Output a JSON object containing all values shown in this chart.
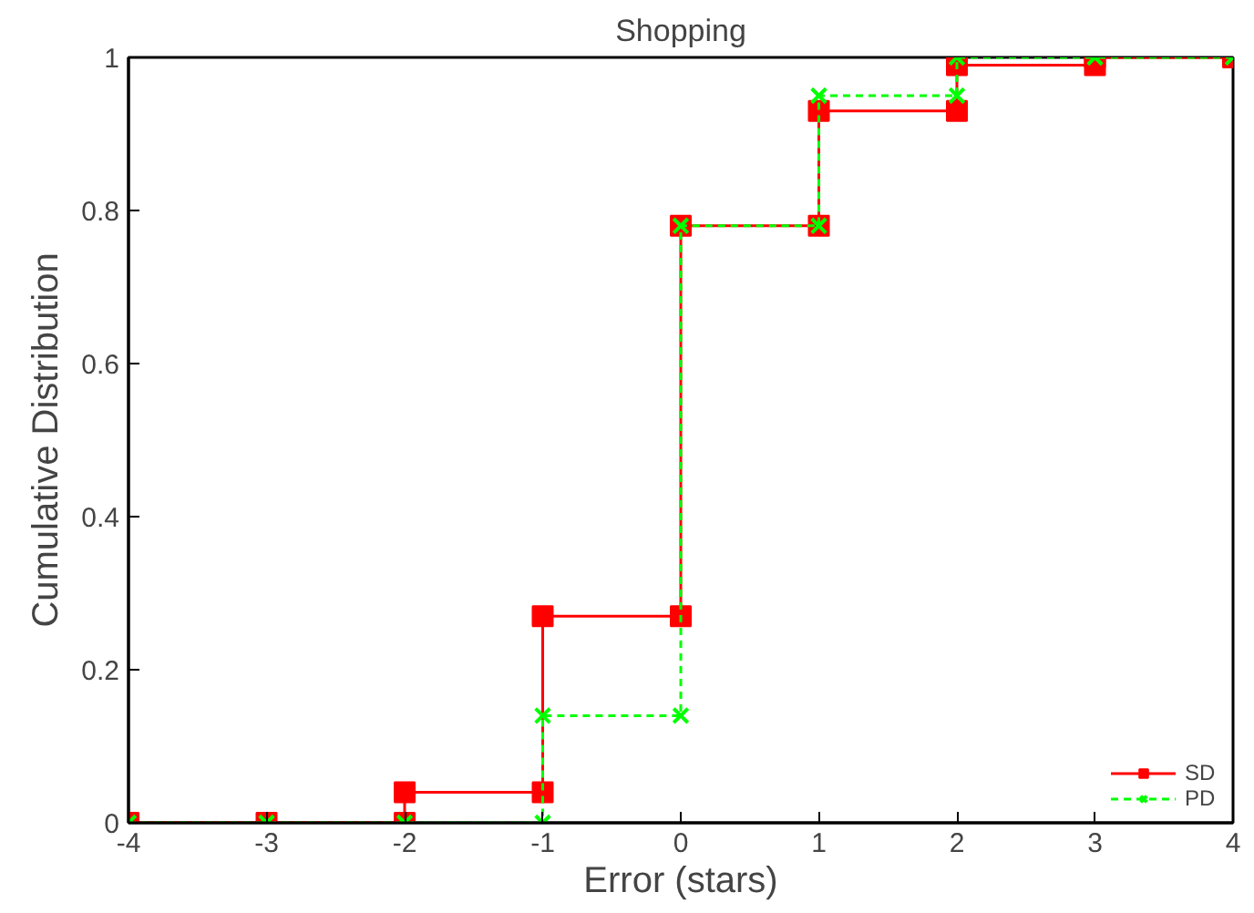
{
  "chart_data": {
    "type": "line",
    "title": "Shopping",
    "xlabel": "Error (stars)",
    "ylabel": "Cumulative Distribution",
    "xlim": [
      -4,
      4
    ],
    "xticks": [
      -4,
      -3,
      -2,
      -1,
      0,
      1,
      2,
      3,
      4
    ],
    "ylim": [
      0,
      1
    ],
    "yticks": [
      0,
      0.2,
      0.4,
      0.6,
      0.8,
      1
    ],
    "grid": false,
    "legend": "bottom right",
    "series": [
      {
        "name": "SD",
        "color": "#ff0000",
        "marker": "square",
        "line_style": "solid",
        "x": [
          -4,
          -3,
          -2,
          -2,
          -1,
          -1,
          0,
          0,
          1,
          1,
          2,
          2,
          3,
          3,
          4
        ],
        "values": [
          0,
          0,
          0,
          0.04,
          0.04,
          0.27,
          0.27,
          0.78,
          0.78,
          0.93,
          0.93,
          0.99,
          0.99,
          1,
          1
        ]
      },
      {
        "name": "PD",
        "color": "#00ff00",
        "marker": "cross",
        "line_style": "dashed",
        "x": [
          -4,
          -3,
          -2,
          -1,
          -1,
          0,
          0,
          1,
          1,
          2,
          2,
          3,
          4
        ],
        "values": [
          0,
          0,
          0,
          0,
          0.14,
          0.14,
          0.78,
          0.78,
          0.95,
          0.95,
          1,
          1,
          1
        ]
      }
    ]
  }
}
